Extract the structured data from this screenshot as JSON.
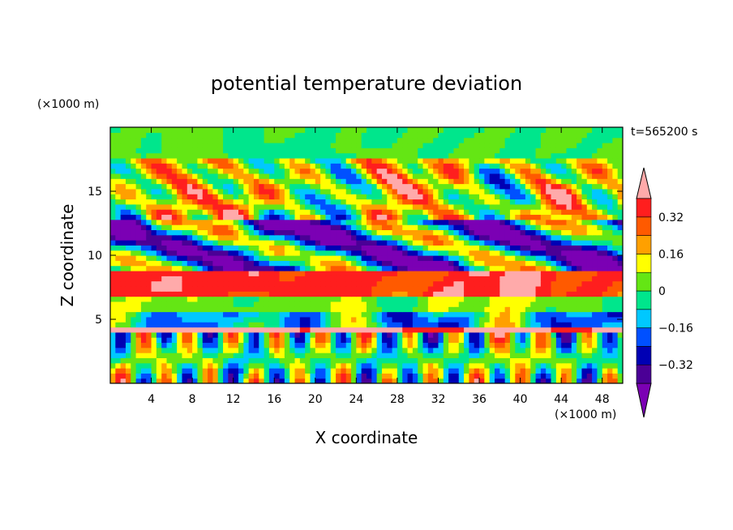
{
  "chart_data": {
    "type": "heatmap",
    "title": "potential temperature deviation",
    "xlabel": "X coordinate",
    "ylabel": "Z coordinate",
    "x_unit": "(×1000 m)",
    "y_unit": "(×1000 m)",
    "time_label": "t=565200 s",
    "xlim": [
      0,
      50
    ],
    "ylim": [
      0,
      20
    ],
    "x_ticks": [
      4,
      8,
      12,
      16,
      20,
      24,
      28,
      32,
      36,
      40,
      44,
      48
    ],
    "y_ticks": [
      5,
      10,
      15
    ],
    "colorbar": {
      "levels": [
        -0.4,
        -0.32,
        -0.24,
        -0.16,
        -0.08,
        0,
        0.08,
        0.16,
        0.24,
        0.32,
        0.4
      ],
      "tick_labels": [
        "0.32",
        "0.16",
        "0",
        "−0.16",
        "−0.32"
      ],
      "tick_values": [
        0.32,
        0.16,
        0,
        -0.16,
        -0.32
      ],
      "colors": [
        "#7b00b4",
        "#4b0096",
        "#0000b4",
        "#0050ff",
        "#00c8ff",
        "#00e68c",
        "#64e614",
        "#ffff00",
        "#ffa000",
        "#ff5a00",
        "#ff1e1e",
        "#ffaaaa"
      ],
      "extend": "both"
    },
    "bands": [
      {
        "z": [
          0.2,
          4.0
        ],
        "pattern": "columns",
        "mean": 0.0
      },
      {
        "z": [
          4.0,
          4.6
        ],
        "pattern": "layer",
        "mean": 0.45
      },
      {
        "z": [
          4.6,
          5.8
        ],
        "pattern": "mixed",
        "mean": -0.1
      },
      {
        "z": [
          5.8,
          7.0
        ],
        "pattern": "layer",
        "mean": 0.05
      },
      {
        "z": [
          7.0,
          9.0
        ],
        "pattern": "layer",
        "mean": 0.35
      },
      {
        "z": [
          9.0,
          13.0
        ],
        "pattern": "tilted",
        "mean": -0.15
      },
      {
        "z": [
          13.0,
          17.5
        ],
        "pattern": "blobs",
        "mean": 0.1
      },
      {
        "z": [
          17.5,
          20.0
        ],
        "pattern": "smooth",
        "mean": 0.0
      }
    ]
  }
}
